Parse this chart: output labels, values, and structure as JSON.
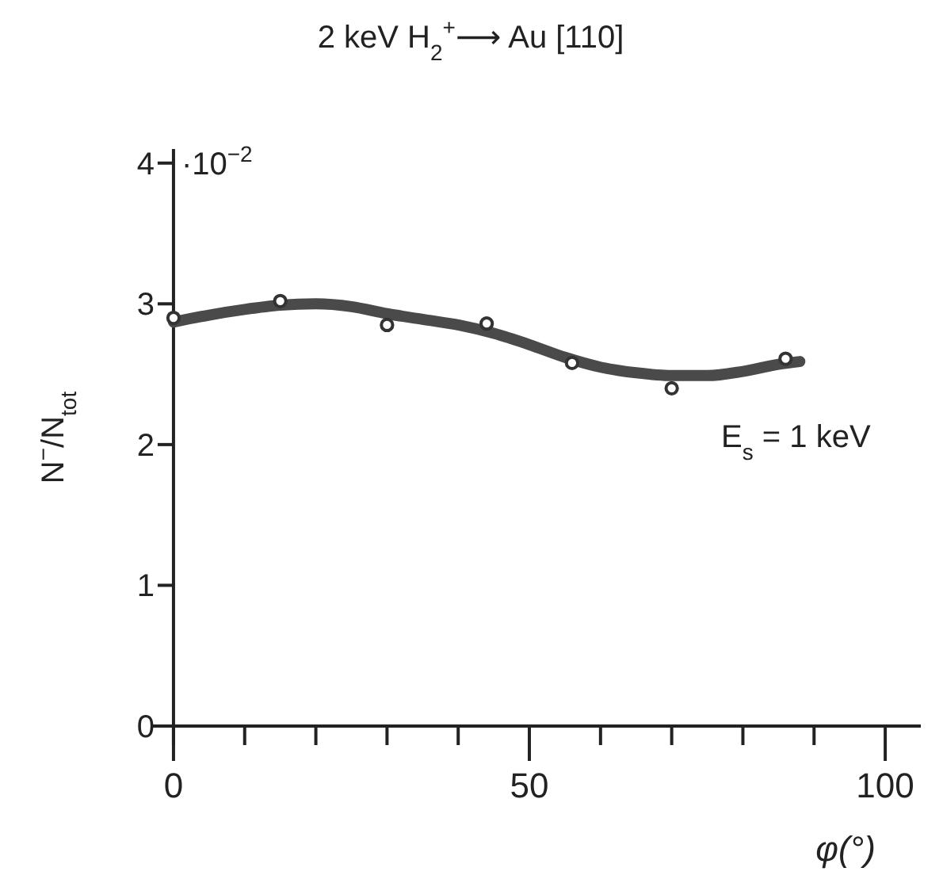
{
  "chart_data": {
    "type": "scatter",
    "title": "2 keV  H$_{2}$$^{+}$⟶ Au [110]",
    "xlabel": "φ(°)",
    "ylabel": "N$^{−}$/N$_{tot}$",
    "annotations": [
      "E$_{s}$ = 1 keV",
      "·10$^{−2}$"
    ],
    "xlim": [
      -3,
      105
    ],
    "xticks": [
      0,
      {
        "value": 10,
        "label": null
      },
      {
        "value": 20,
        "label": null
      },
      {
        "value": 30,
        "label": null
      },
      {
        "value": 40,
        "label": null
      },
      50,
      {
        "value": 60,
        "label": null
      },
      {
        "value": 70,
        "label": null
      },
      {
        "value": 80,
        "label": null
      },
      {
        "value": 90,
        "label": null
      },
      100
    ],
    "ylim": [
      0,
      4.1
    ],
    "yticks": [
      0,
      1,
      2,
      3,
      4
    ],
    "grid": false,
    "series": [
      {
        "type": "line",
        "color": "#4a4a4a",
        "line_style": "solid",
        "marker": "none",
        "x": [
          0,
          5,
          10,
          15,
          20,
          25,
          30,
          35,
          40,
          45,
          50,
          55,
          60,
          65,
          70,
          75,
          80,
          85,
          88
        ],
        "values": [
          2.87,
          2.92,
          2.96,
          2.99,
          3.0,
          2.98,
          2.93,
          2.89,
          2.85,
          2.79,
          2.71,
          2.62,
          2.55,
          2.51,
          2.49,
          2.49,
          2.52,
          2.57,
          2.59
        ]
      },
      {
        "color": "#333333",
        "marker": "circle",
        "x": [
          0,
          15,
          30,
          44,
          56,
          70,
          86
        ],
        "values": [
          2.9,
          3.02,
          2.85,
          2.86,
          2.58,
          2.4,
          2.61
        ]
      }
    ]
  }
}
